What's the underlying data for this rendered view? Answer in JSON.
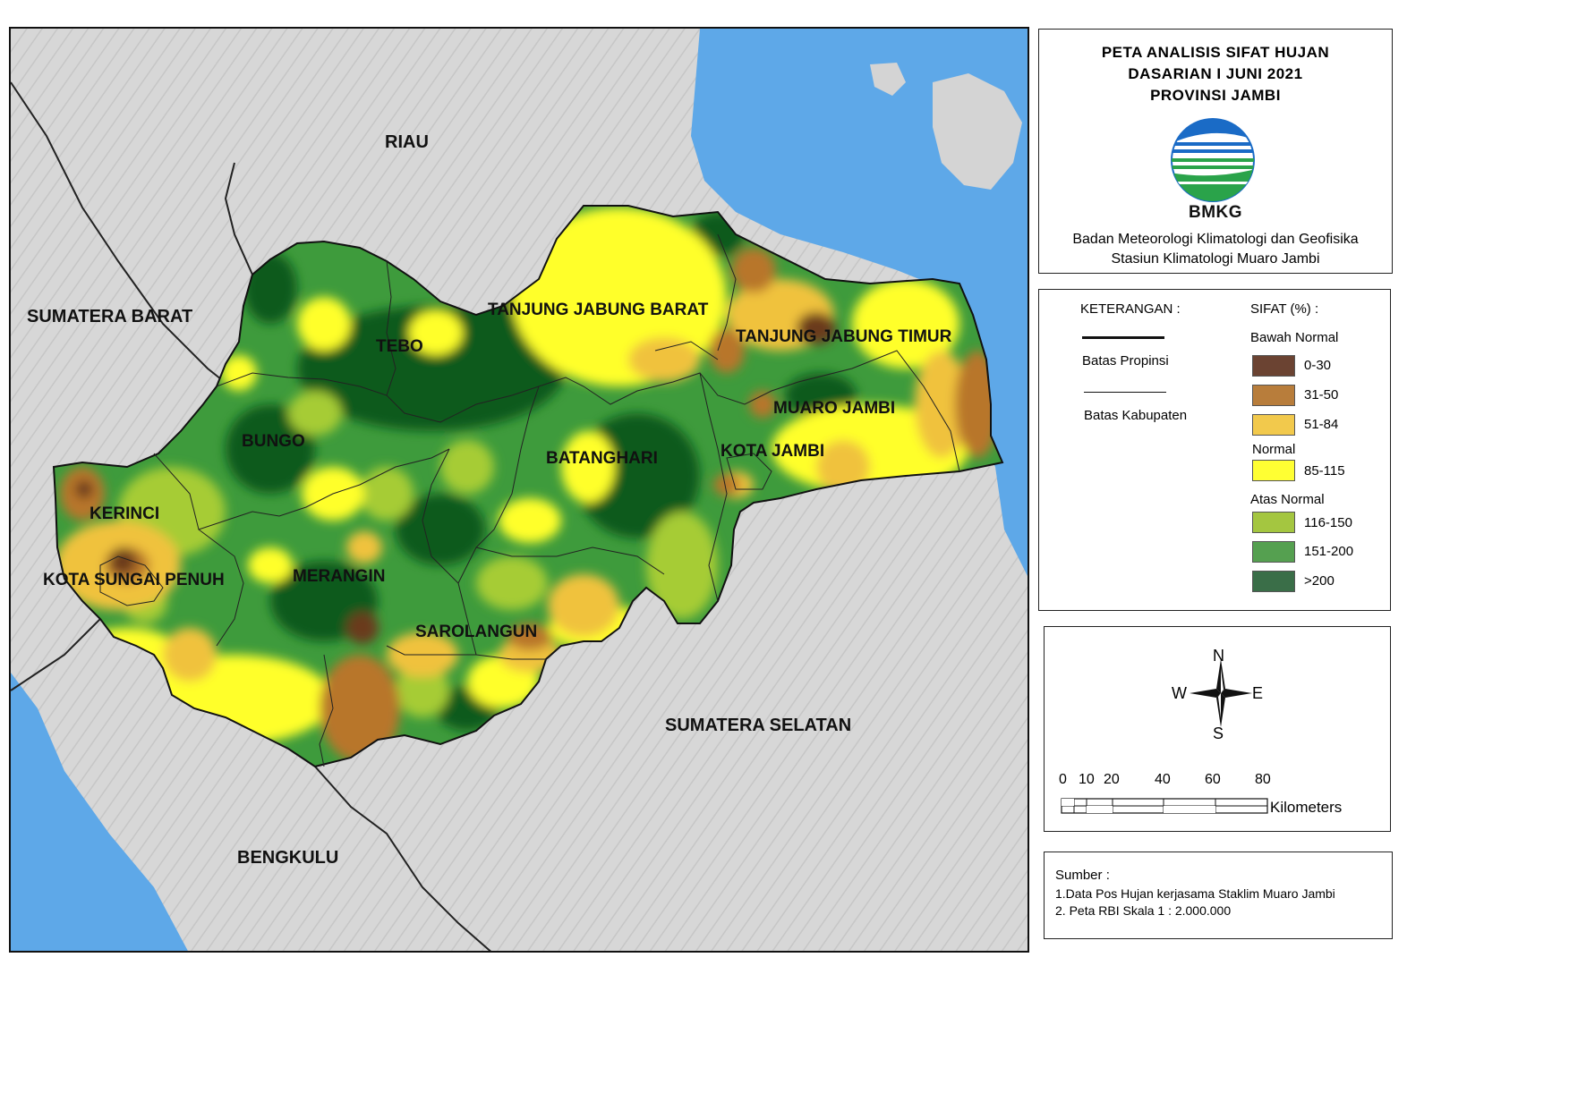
{
  "title": {
    "line1": "PETA ANALISIS SIFAT HUJAN",
    "line2": "DASARIAN I JUNI 2021",
    "line3": "PROVINSI JAMBI",
    "logo_text": "BMKG",
    "agency": "Badan Meteorologi Klimatologi dan Geofisika",
    "station": "Stasiun Klimatologi Muaro Jambi"
  },
  "map": {
    "neighbors": {
      "riau": "RIAU",
      "sumbar": "SUMATERA BARAT",
      "sumsel": "SUMATERA SELATAN",
      "bengkulu": "BENGKULU"
    },
    "regencies": {
      "tjb": "TANJUNG JABUNG BARAT",
      "tjt": "TANJUNG JABUNG TIMUR",
      "tebo": "TEBO",
      "bungo": "BUNGO",
      "muaro_jambi": "MUARO JAMBI",
      "kota_jambi": "KOTA JAMBI",
      "batanghari": "BATANGHARI",
      "kerinci": "KERINCI",
      "sungai_penuh": "KOTA SUNGAI PENUH",
      "merangin": "MERANGIN",
      "sarolangun": "SAROLANGUN"
    },
    "colors": {
      "sea": "#5aa6e6",
      "land": "#d4d4d4",
      "c0_30": "#6b3a1e",
      "c31_50": "#b8762a",
      "c51_84": "#f0c23c",
      "c85_115": "#ffff2a",
      "c116_150": "#a6cc34",
      "c151_200": "#3e9b3c",
      "c200": "#0d5a1a"
    }
  },
  "legend": {
    "heading": "KETERANGAN :",
    "sifat": "SIFAT (%) :",
    "batas_propinsi": "Batas Propinsi",
    "batas_kabupaten": "Batas Kabupaten",
    "bawah_normal": "Bawah Normal",
    "normal": "Normal",
    "atas_normal": "Atas Normal",
    "classes": [
      {
        "label": "0-30",
        "color": "#6b4332"
      },
      {
        "label": "31-50",
        "color": "#b87d3b"
      },
      {
        "label": "51-84",
        "color": "#f2c94c"
      },
      {
        "label": "85-115",
        "color": "#ffff33"
      },
      {
        "label": "116-150",
        "color": "#a4c640"
      },
      {
        "label": "151-200",
        "color": "#55a050"
      },
      {
        "label": ">200",
        "color": "#3a6e48"
      }
    ]
  },
  "compass": {
    "n": "N",
    "s": "S",
    "e": "E",
    "w": "W"
  },
  "scale": {
    "ticks": [
      "0",
      "10",
      "20",
      "40",
      "60",
      "80"
    ],
    "unit": "Kilometers"
  },
  "source": {
    "heading": "Sumber :",
    "line1": "1.Data Pos Hujan kerjasama Staklim Muaro Jambi",
    "line2": "2. Peta RBI Skala 1 : 2.000.000"
  }
}
